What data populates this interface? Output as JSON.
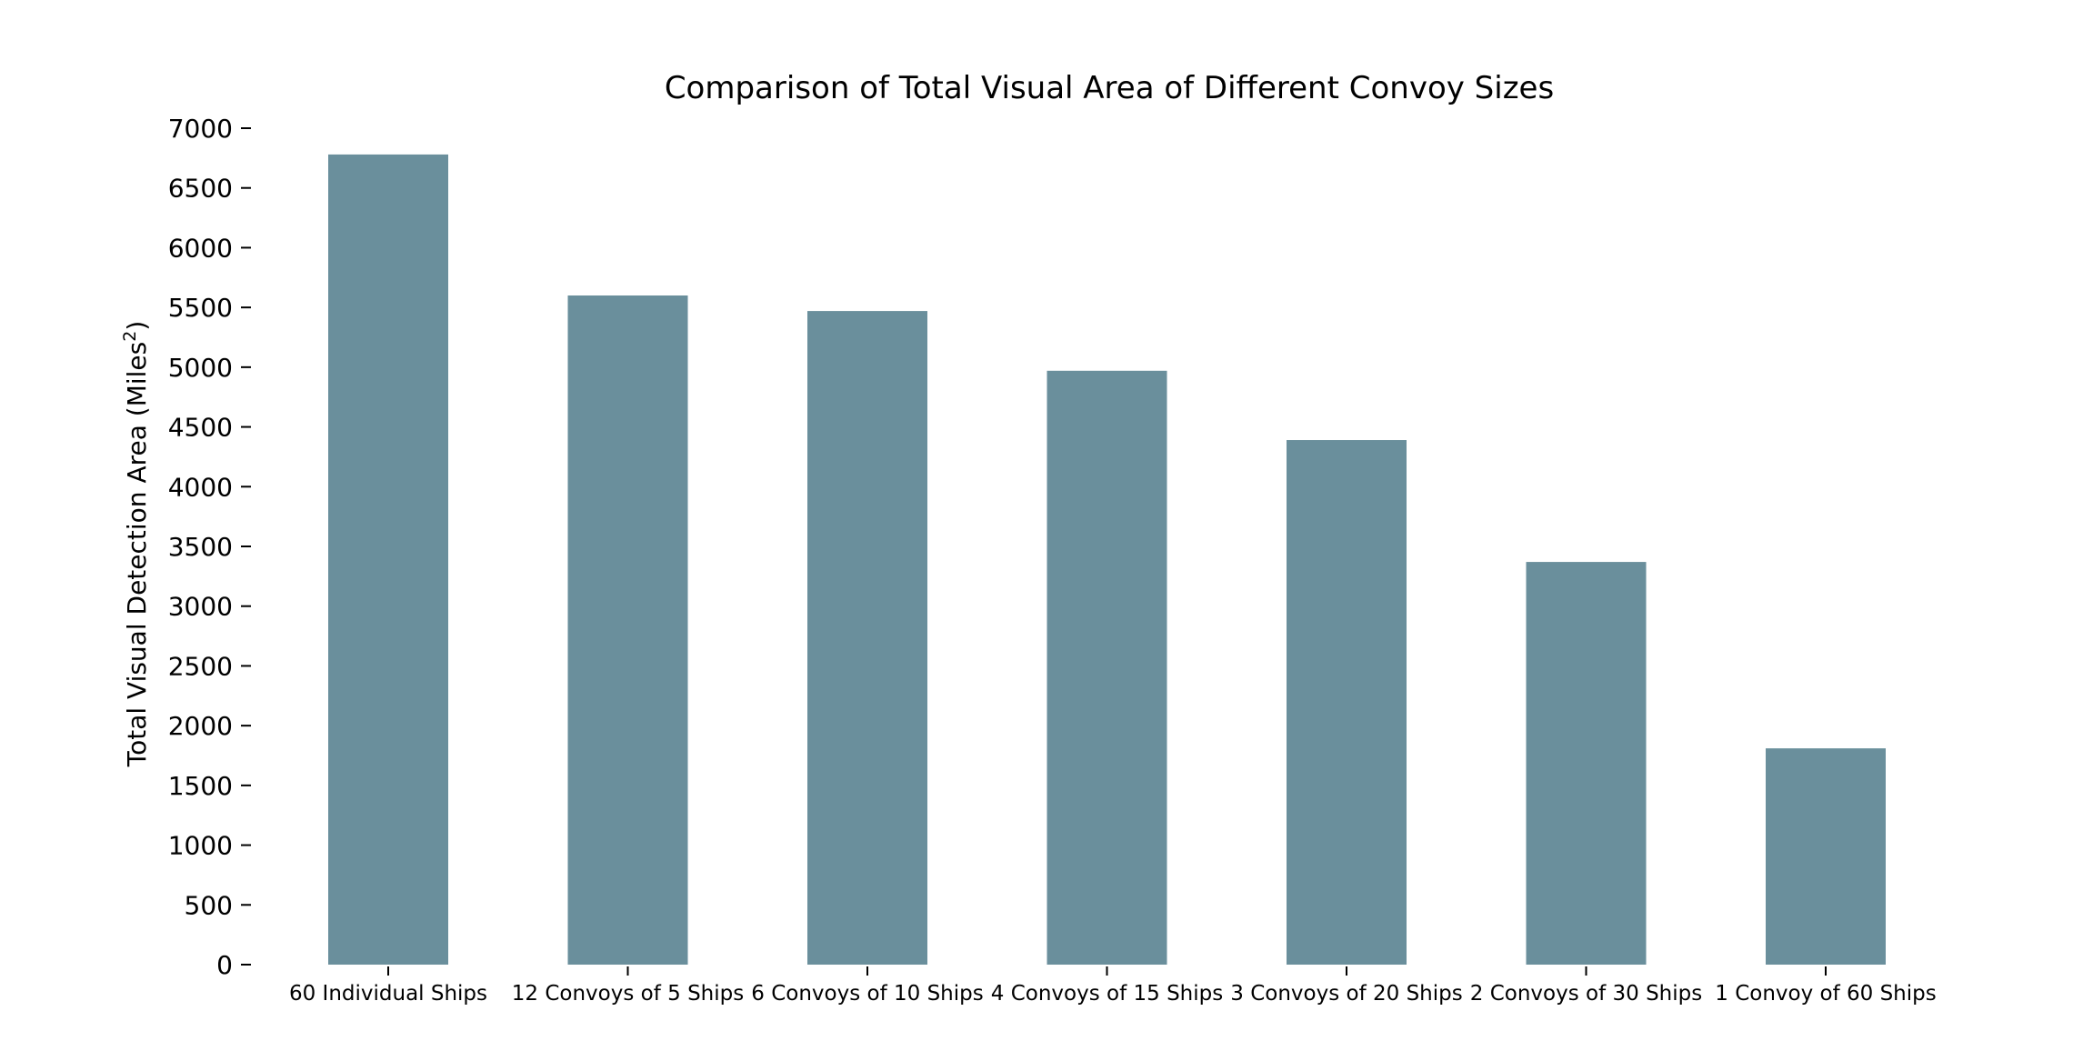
{
  "chart_data": {
    "type": "bar",
    "title": "Comparison of Total Visual Area of Different Convoy Sizes",
    "xlabel": "",
    "ylabel": "Total Visual Detection Area (Miles",
    "ylabel_superscript": "2",
    "ylabel_suffix": ")",
    "categories": [
      "60 Individual Ships",
      "12 Convoys of 5 Ships",
      "6 Convoys of 10 Ships",
      "4 Convoys of 15 Ships",
      "3 Convoys of 20 Ships",
      "2 Convoys of 30 Ships",
      "1 Convoy of 60 Ships"
    ],
    "values": [
      6780,
      5600,
      5470,
      4970,
      4390,
      3370,
      1810
    ],
    "ylim": [
      0,
      7000
    ],
    "yticks": [
      0,
      500,
      1000,
      1500,
      2000,
      2500,
      3000,
      3500,
      4000,
      4500,
      5000,
      5500,
      6000,
      6500,
      7000
    ],
    "grid": false,
    "legend": "none",
    "bar_color": "#6a8f9c"
  }
}
